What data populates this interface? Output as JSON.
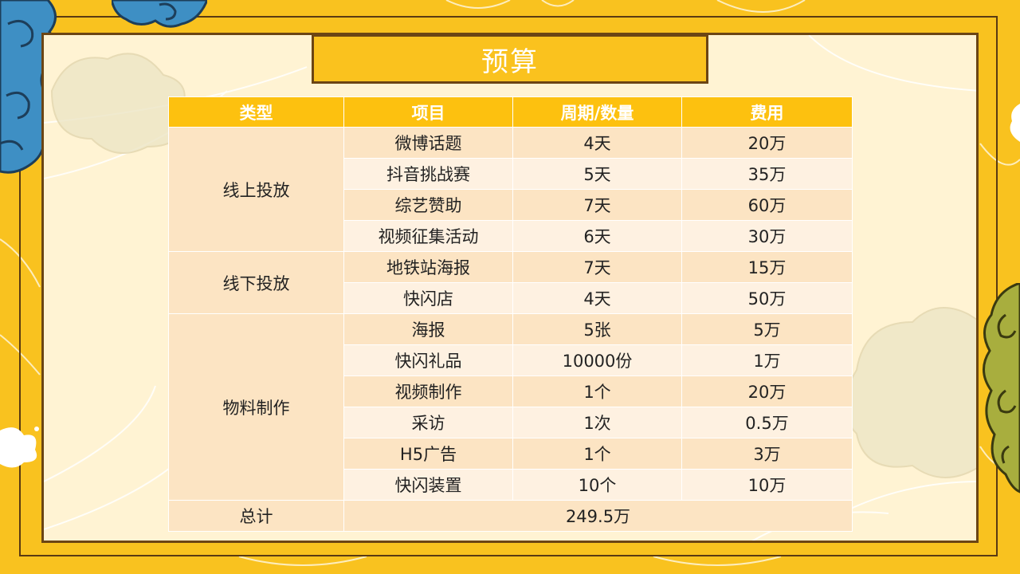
{
  "title": "预算",
  "table": {
    "headers": [
      "类型",
      "项目",
      "周期/数量",
      "费用"
    ],
    "groups": [
      {
        "type": "线上投放",
        "rows": [
          {
            "item": "微博话题",
            "period": "4天",
            "cost": "20万"
          },
          {
            "item": "抖音挑战赛",
            "period": "5天",
            "cost": "35万"
          },
          {
            "item": "综艺赞助",
            "period": "7天",
            "cost": "60万"
          },
          {
            "item": "视频征集活动",
            "period": "6天",
            "cost": "30万"
          }
        ]
      },
      {
        "type": "线下投放",
        "rows": [
          {
            "item": "地铁站海报",
            "period": "7天",
            "cost": "15万"
          },
          {
            "item": "快闪店",
            "period": "4天",
            "cost": "50万"
          }
        ]
      },
      {
        "type": "物料制作",
        "rows": [
          {
            "item": "海报",
            "period": "5张",
            "cost": "5万"
          },
          {
            "item": "快闪礼品",
            "period": "10000份",
            "cost": "1万"
          },
          {
            "item": "视频制作",
            "period": "1个",
            "cost": "20万"
          },
          {
            "item": "采访",
            "period": "1次",
            "cost": "0.5万"
          },
          {
            "item": "H5广告",
            "period": "1个",
            "cost": "3万"
          },
          {
            "item": "快闪装置",
            "period": "10个",
            "cost": "10万"
          }
        ]
      }
    ],
    "total": {
      "label": "总计",
      "value": "249.5万"
    }
  },
  "colors": {
    "background": "#F9C21F",
    "panel": "#FFF3D3",
    "frame": "#6B4514",
    "header": "#FDC10F",
    "row_dark": "#FCE4C3",
    "row_light": "#FEF1E1",
    "cloud_blue": "#3E8FC4",
    "cloud_green": "#A8AE3E"
  }
}
